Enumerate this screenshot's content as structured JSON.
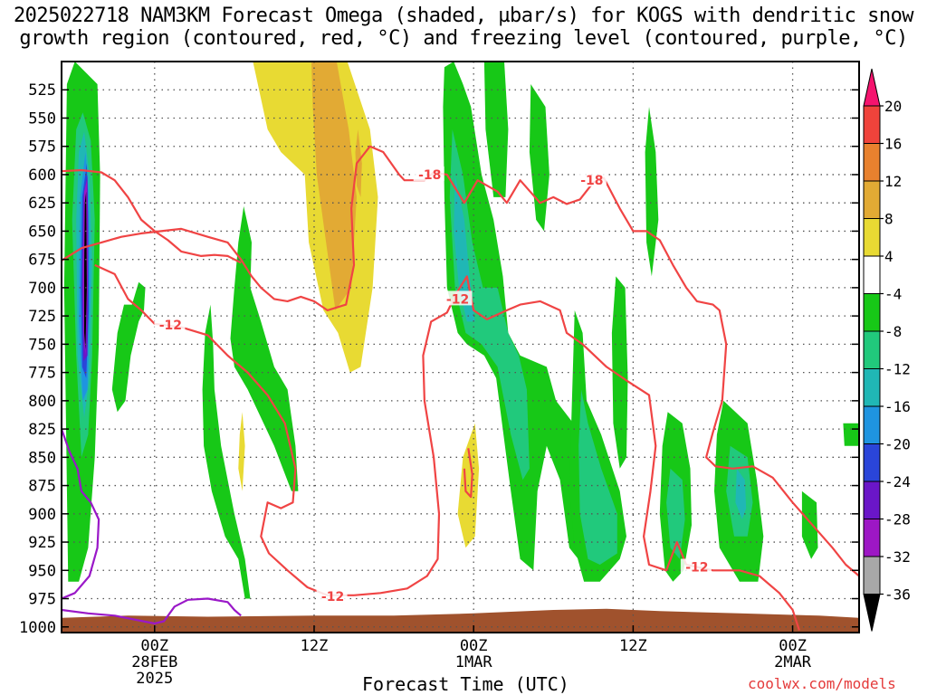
{
  "title_line1": "2025022718 NAM3KM Forecast Omega (shaded, µbar/s) for KOGS with dendritic snow",
  "title_line2": "growth region (contoured, red, °C) and freezing level (contoured, purple, °C)",
  "xaxis_title": "Forecast Time (UTC)",
  "credit": "coolwx.com/models",
  "chart_data": {
    "type": "heatmap",
    "title": "2025022718 NAM3KM Forecast Omega (shaded, µbar/s) for KOGS with dendritic snow growth region (contoured, red, °C) and freezing level (contoured, purple, °C)",
    "xlabel": "Forecast Time (UTC)",
    "ylabel": "",
    "x_range_hours": [
      -1,
      59
    ],
    "y_range_hpa": [
      1005,
      500
    ],
    "y_ticks": [
      525,
      550,
      575,
      600,
      625,
      650,
      675,
      700,
      725,
      750,
      775,
      800,
      825,
      850,
      875,
      900,
      925,
      950,
      975,
      1000
    ],
    "x_ticks": [
      {
        "hour": 6,
        "labels": [
          "00Z",
          "28FEB",
          "2025"
        ]
      },
      {
        "hour": 18,
        "labels": [
          "12Z"
        ]
      },
      {
        "hour": 30,
        "labels": [
          "00Z",
          "1MAR"
        ]
      },
      {
        "hour": 42,
        "labels": [
          "12Z"
        ]
      },
      {
        "hour": 54,
        "labels": [
          "00Z",
          "2MAR"
        ]
      }
    ],
    "grid": "dotted",
    "colorbar": {
      "levels": [
        20,
        16,
        12,
        8,
        4,
        -4,
        -8,
        -12,
        -16,
        -20,
        -24,
        -28,
        -32,
        -36
      ],
      "colors": [
        "#f5146e",
        "#f0433b",
        "#e8812e",
        "#e2aa34",
        "#e8da33",
        "#ffffff",
        "#17c817",
        "#21c97c",
        "#20b7b5",
        "#1f94e0",
        "#2a45d9",
        "#6a16c8",
        "#9d17c5",
        "#a8a8a8",
        "#000000"
      ]
    },
    "contour_labels": [
      "-18",
      "-18",
      "-12",
      "-12",
      "-12",
      "-12"
    ],
    "colors": {
      "dgz_contour": "#f04444",
      "freezing_contour": "#9a18c8",
      "terrain": "#a0522d"
    }
  }
}
